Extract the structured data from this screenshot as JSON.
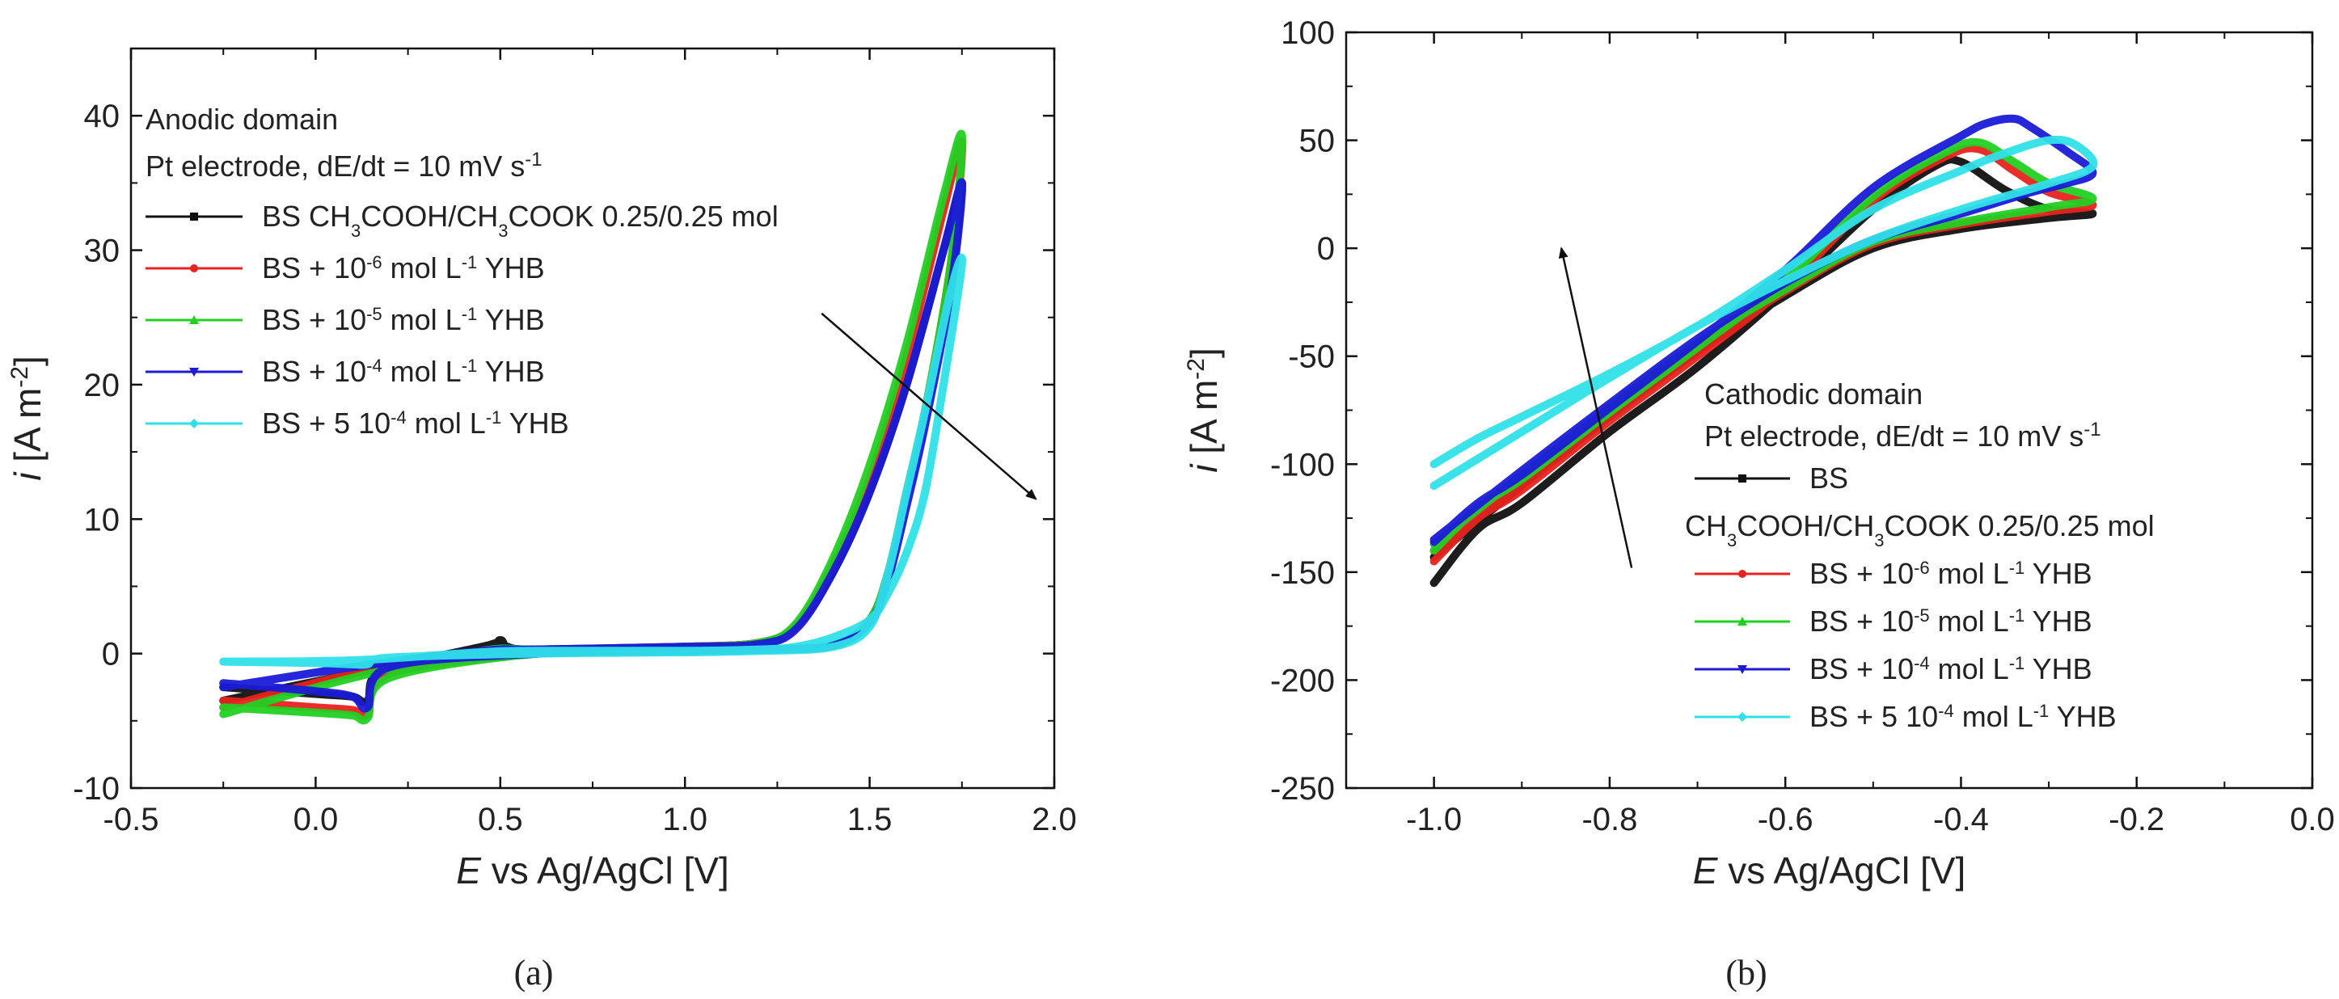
{
  "chart_data": [
    {
      "panel": "(a)",
      "type": "line",
      "title": "",
      "xlabel": {
        "italic": "E",
        "rest": " vs Ag/AgCl [V]"
      },
      "ylabel": {
        "italic": "i",
        "unit": "[A m",
        "sup": "-2",
        "close": "]"
      },
      "xlim": [
        -0.5,
        2.0
      ],
      "ylim": [
        -10,
        45
      ],
      "xticks": [
        -0.5,
        0.0,
        0.5,
        1.0,
        1.5,
        2.0
      ],
      "xtick_labels": [
        "-0.5",
        "0.0",
        "0.5",
        "1.0",
        "1.5",
        "2.0"
      ],
      "yticks": [
        -10,
        0,
        10,
        20,
        30,
        40
      ],
      "ytick_labels": [
        "-10",
        "0",
        "10",
        "20",
        "30",
        "40"
      ],
      "annotations": {
        "domain": "Anodic domain",
        "conditions": {
          "text": "Pt electrode, dE/dt = 10 mV s",
          "sup": "-1"
        }
      },
      "arrow": {
        "from": [
          1.37,
          25.3
        ],
        "to": [
          1.95,
          11.5
        ]
      },
      "legend": [
        {
          "parts": [
            [
              "n",
              "BS CH"
            ],
            [
              "b",
              "3"
            ],
            [
              "n",
              "COOH/CH"
            ],
            [
              "b",
              "3"
            ],
            [
              "n",
              "COOK 0.25/0.25 mol"
            ]
          ],
          "color": "#111111",
          "marker": "square"
        },
        {
          "parts": [
            [
              "n",
              "BS + 10"
            ],
            [
              "p",
              "-6"
            ],
            [
              "n",
              " mol L"
            ],
            [
              "p",
              "-1"
            ],
            [
              "n",
              " YHB"
            ]
          ],
          "color": "#e8231e",
          "marker": "circle"
        },
        {
          "parts": [
            [
              "n",
              "BS + 10"
            ],
            [
              "p",
              "-5"
            ],
            [
              "n",
              " mol L"
            ],
            [
              "p",
              "-1"
            ],
            [
              "n",
              " YHB"
            ]
          ],
          "color": "#22d022",
          "marker": "triangle-up"
        },
        {
          "parts": [
            [
              "n",
              "BS + 10"
            ],
            [
              "p",
              "-4"
            ],
            [
              "n",
              " mol L"
            ],
            [
              "p",
              "-1"
            ],
            [
              "n",
              " YHB"
            ]
          ],
          "color": "#1a1ad8",
          "marker": "triangle-down"
        },
        {
          "parts": [
            [
              "n",
              "BS + 5 10"
            ],
            [
              "p",
              "-4"
            ],
            [
              "n",
              " mol L"
            ],
            [
              "p",
              "-1"
            ],
            [
              "n",
              " YHB"
            ]
          ],
          "color": "#2fe0e8",
          "marker": "diamond"
        }
      ],
      "series": [
        {
          "name": "BS",
          "color": "#111111",
          "x": [
            -0.25,
            0.1,
            0.45,
            0.5,
            0.52,
            0.6,
            1.0,
            1.2,
            1.3,
            1.4,
            1.5,
            1.6,
            1.7,
            1.75,
            1.72,
            1.65,
            1.6,
            1.55,
            1.5,
            1.4,
            1.2,
            1.0,
            0.6,
            0.2,
            0.14,
            0.1,
            0.0,
            -0.25
          ],
          "y": [
            -3.5,
            -1.5,
            0.5,
            1.0,
            0.5,
            0.3,
            0.5,
            0.8,
            2.0,
            6.0,
            12.0,
            20.0,
            30.0,
            35.0,
            28.0,
            18.0,
            12.0,
            6.0,
            2.5,
            0.6,
            0.3,
            0.2,
            0.0,
            -1.0,
            -3.5,
            -3.2,
            -3.0,
            -2.5
          ]
        },
        {
          "name": "BS + 10^-6",
          "color": "#e8231e",
          "x": [
            -0.25,
            0.1,
            0.45,
            0.6,
            1.0,
            1.2,
            1.3,
            1.4,
            1.5,
            1.6,
            1.7,
            1.75,
            1.72,
            1.65,
            1.6,
            1.55,
            1.5,
            1.4,
            1.2,
            1.0,
            0.6,
            0.2,
            0.14,
            0.1,
            0.0,
            -0.25
          ],
          "y": [
            -4.0,
            -1.5,
            0.2,
            0.3,
            0.5,
            0.8,
            2.0,
            6.5,
            13.0,
            22.0,
            33.0,
            38.0,
            29.0,
            18.0,
            12.0,
            6.0,
            2.5,
            0.6,
            0.3,
            0.2,
            0.0,
            -1.5,
            -4.5,
            -4.2,
            -4.0,
            -3.5
          ]
        },
        {
          "name": "BS + 10^-5",
          "color": "#22d022",
          "x": [
            -0.25,
            0.1,
            0.45,
            0.6,
            1.0,
            1.2,
            1.3,
            1.4,
            1.5,
            1.6,
            1.7,
            1.75,
            1.72,
            1.65,
            1.6,
            1.55,
            1.5,
            1.4,
            1.2,
            1.0,
            0.6,
            0.2,
            0.14,
            0.1,
            0.0,
            -0.25
          ],
          "y": [
            -4.5,
            -1.8,
            0.2,
            0.3,
            0.5,
            0.8,
            2.2,
            7.0,
            14.0,
            23.0,
            34.0,
            38.5,
            29.0,
            18.0,
            12.0,
            6.0,
            2.5,
            0.6,
            0.3,
            0.2,
            0.0,
            -1.8,
            -4.8,
            -4.6,
            -4.4,
            -4.0
          ]
        },
        {
          "name": "BS + 10^-4",
          "color": "#1a1ad8",
          "x": [
            -0.25,
            0.1,
            0.45,
            0.6,
            1.0,
            1.2,
            1.3,
            1.4,
            1.5,
            1.6,
            1.7,
            1.75,
            1.72,
            1.65,
            1.6,
            1.55,
            1.5,
            1.4,
            1.2,
            1.0,
            0.6,
            0.2,
            0.14,
            0.1,
            0.0,
            -0.25
          ],
          "y": [
            -2.5,
            -1.0,
            0.2,
            0.3,
            0.5,
            0.7,
            1.8,
            6.0,
            12.0,
            20.0,
            30.0,
            35.0,
            27.0,
            17.0,
            11.0,
            5.5,
            2.3,
            0.6,
            0.3,
            0.2,
            0.0,
            -1.0,
            -4.0,
            -3.2,
            -2.8,
            -2.2
          ]
        },
        {
          "name": "BS + 5 10^-4",
          "color": "#2fe0e8",
          "x": [
            -0.25,
            0.1,
            0.45,
            0.6,
            1.0,
            1.2,
            1.3,
            1.4,
            1.5,
            1.55,
            1.6,
            1.65,
            1.7,
            1.75,
            1.72,
            1.65,
            1.6,
            1.55,
            1.5,
            1.4,
            1.2,
            1.0,
            0.6,
            0.2,
            0.14,
            0.1,
            0.0,
            -0.25
          ],
          "y": [
            -0.6,
            -0.5,
            0.1,
            0.2,
            0.2,
            0.3,
            0.5,
            1.2,
            2.5,
            4.5,
            7.5,
            12.0,
            20.0,
            29.0,
            27.0,
            18.0,
            12.0,
            6.0,
            2.0,
            0.5,
            0.2,
            0.1,
            0.0,
            -0.3,
            -0.8,
            -0.8,
            -0.7,
            -0.6
          ]
        }
      ]
    },
    {
      "panel": "(b)",
      "type": "line",
      "title": "",
      "xlabel": {
        "italic": "E",
        "rest": " vs Ag/AgCl [V]"
      },
      "ylabel": {
        "italic": "i",
        "unit": "[A m",
        "sup": "-2",
        "close": "]"
      },
      "xlim": [
        -1.1,
        0.0
      ],
      "ylim": [
        -250,
        100
      ],
      "xticks": [
        -1.0,
        -0.8,
        -0.6,
        -0.4,
        -0.2,
        0.0
      ],
      "xtick_labels": [
        "-1.0",
        "-0.8",
        "-0.6",
        "-0.4",
        "-0.2",
        "0.0"
      ],
      "yticks": [
        -250,
        -200,
        -150,
        -100,
        -50,
        0,
        50,
        100
      ],
      "ytick_labels": [
        "-250",
        "-200",
        "-150",
        "-100",
        "-50",
        "0",
        "50",
        "100"
      ],
      "annotations": {
        "domain": "Cathodic domain",
        "conditions": {
          "text": "Pt electrode, dE/dt = 10 mV s",
          "sup": "-1"
        }
      },
      "arrow": {
        "from": [
          -0.775,
          -148
        ],
        "to": [
          -0.855,
          0
        ]
      },
      "legend": [
        {
          "parts": [
            [
              "n",
              "BS"
            ]
          ],
          "color": "#111111",
          "marker": "square"
        },
        {
          "parts": [
            [
              "n",
              "CH"
            ],
            [
              "b",
              "3"
            ],
            [
              "n",
              "COOH/CH"
            ],
            [
              "b",
              "3"
            ],
            [
              "n",
              "COOK 0.25/0.25 mol"
            ]
          ],
          "color": null,
          "marker": "none"
        },
        {
          "parts": [
            [
              "n",
              "BS + 10"
            ],
            [
              "p",
              "-6"
            ],
            [
              "n",
              " mol L"
            ],
            [
              "p",
              "-1"
            ],
            [
              "n",
              " YHB"
            ]
          ],
          "color": "#e8231e",
          "marker": "circle"
        },
        {
          "parts": [
            [
              "n",
              "BS + 10"
            ],
            [
              "p",
              "-5"
            ],
            [
              "n",
              " mol L"
            ],
            [
              "p",
              "-1"
            ],
            [
              "n",
              " YHB"
            ]
          ],
          "color": "#22d022",
          "marker": "triangle-up"
        },
        {
          "parts": [
            [
              "n",
              "BS + 10"
            ],
            [
              "p",
              "-4"
            ],
            [
              "n",
              " mol L"
            ],
            [
              "p",
              "-1"
            ],
            [
              "n",
              " YHB"
            ]
          ],
          "color": "#1a1ad8",
          "marker": "triangle-down"
        },
        {
          "parts": [
            [
              "n",
              "BS + 5 10"
            ],
            [
              "p",
              "-4"
            ],
            [
              "n",
              " mol L"
            ],
            [
              "p",
              "-1"
            ],
            [
              "n",
              " YHB"
            ]
          ],
          "color": "#2fe0e8",
          "marker": "diamond"
        }
      ],
      "series": [
        {
          "name": "BS",
          "color": "#111111",
          "x": [
            -1.0,
            -0.95,
            -0.9,
            -0.8,
            -0.7,
            -0.6,
            -0.5,
            -0.43,
            -0.4,
            -0.35,
            -0.3,
            -0.25,
            -0.3,
            -0.4,
            -0.5,
            -0.6,
            -0.7,
            -0.8,
            -0.9,
            -1.0
          ],
          "y": [
            -155,
            -130,
            -118,
            -85,
            -55,
            -20,
            18,
            38,
            40,
            27,
            18,
            16,
            14,
            9,
            0,
            -22,
            -48,
            -78,
            -110,
            -143
          ]
        },
        {
          "name": "BS + 10^-6",
          "color": "#e8231e",
          "x": [
            -1.0,
            -0.95,
            -0.9,
            -0.8,
            -0.7,
            -0.6,
            -0.5,
            -0.42,
            -0.38,
            -0.34,
            -0.3,
            -0.25,
            -0.3,
            -0.4,
            -0.5,
            -0.6,
            -0.7,
            -0.8,
            -0.9,
            -1.0
          ],
          "y": [
            -145,
            -125,
            -112,
            -80,
            -50,
            -18,
            22,
            42,
            46,
            36,
            26,
            20,
            17,
            11,
            2,
            -20,
            -46,
            -76,
            -108,
            -140
          ]
        },
        {
          "name": "BS + 10^-5",
          "color": "#22d022",
          "x": [
            -1.0,
            -0.95,
            -0.9,
            -0.8,
            -0.7,
            -0.6,
            -0.5,
            -0.42,
            -0.38,
            -0.34,
            -0.3,
            -0.25,
            -0.3,
            -0.4,
            -0.5,
            -0.6,
            -0.7,
            -0.8,
            -0.9,
            -1.0
          ],
          "y": [
            -140,
            -120,
            -107,
            -76,
            -46,
            -15,
            24,
            44,
            49,
            40,
            30,
            23,
            19,
            12,
            3,
            -19,
            -44,
            -74,
            -105,
            -137
          ]
        },
        {
          "name": "BS + 10^-4",
          "color": "#1a1ad8",
          "x": [
            -1.0,
            -0.95,
            -0.9,
            -0.8,
            -0.7,
            -0.6,
            -0.5,
            -0.4,
            -0.37,
            -0.34,
            -0.32,
            -0.28,
            -0.25,
            -0.28,
            -0.32,
            -0.4,
            -0.5,
            -0.6,
            -0.7,
            -0.8,
            -0.9,
            -1.0
          ],
          "y": [
            -136,
            -118,
            -105,
            -74,
            -43,
            -10,
            28,
            52,
            58,
            60,
            56,
            45,
            35,
            30,
            26,
            16,
            4,
            -16,
            -42,
            -72,
            -103,
            -135
          ]
        },
        {
          "name": "BS + 5 10^-4",
          "color": "#2fe0e8",
          "x": [
            -1.0,
            -0.95,
            -0.9,
            -0.8,
            -0.7,
            -0.6,
            -0.5,
            -0.4,
            -0.35,
            -0.3,
            -0.27,
            -0.25,
            -0.3,
            -0.4,
            -0.5,
            -0.6,
            -0.7,
            -0.8,
            -0.9,
            -1.0
          ],
          "y": [
            -100,
            -88,
            -78,
            -58,
            -36,
            -10,
            18,
            36,
            44,
            50,
            48,
            38,
            30,
            18,
            4,
            -15,
            -36,
            -60,
            -85,
            -110
          ]
        }
      ]
    }
  ],
  "panel_labels": [
    "(a)",
    "(b)"
  ]
}
